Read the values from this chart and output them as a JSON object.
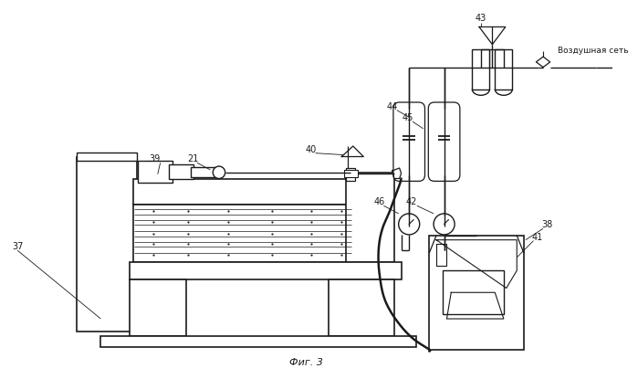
{
  "bg_color": "#ffffff",
  "lc": "#1a1a1a",
  "title": "Фиг. 3",
  "vozdush": "Воздушная сеть"
}
